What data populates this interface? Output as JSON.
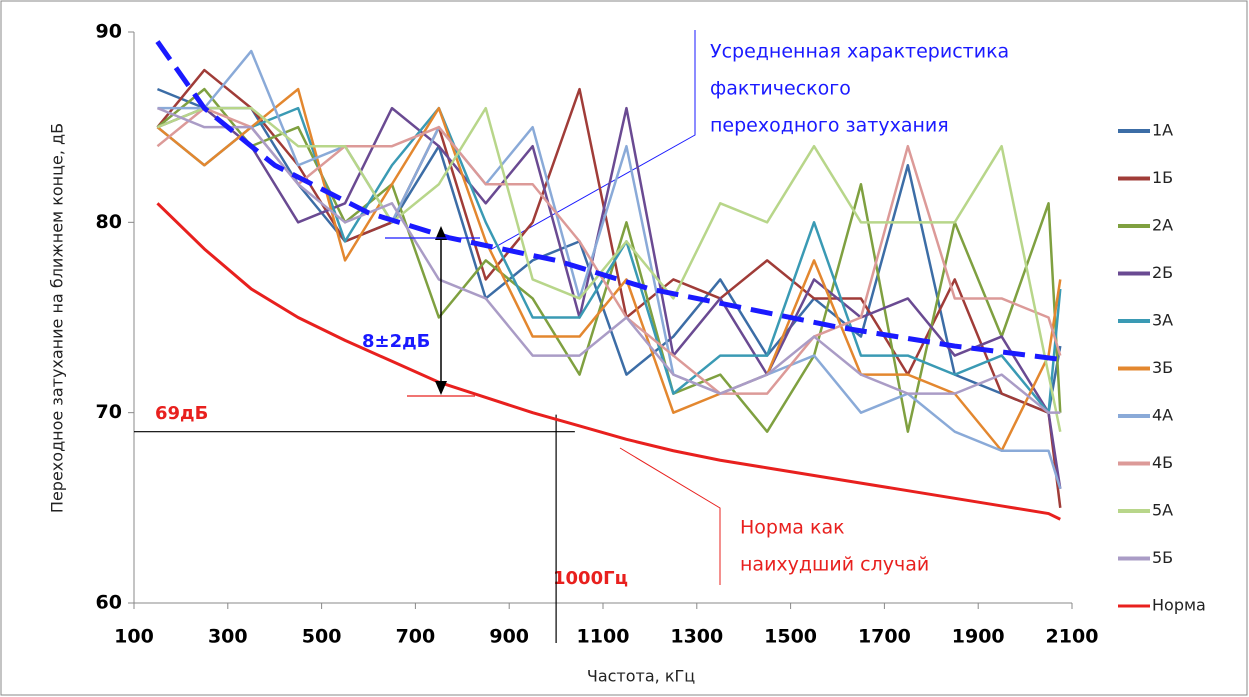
{
  "chart_data": {
    "type": "line",
    "x_label": "Частота, кГц",
    "y_label": "Переходное затухание на ближнем конце,  дБ",
    "xlim": [
      100,
      2100
    ],
    "xticks": [
      100,
      300,
      500,
      700,
      900,
      1100,
      1300,
      1500,
      1700,
      1900,
      2100
    ],
    "ylim": [
      60,
      90
    ],
    "yticks": [
      60,
      70,
      80,
      90
    ],
    "x": [
      150,
      250,
      350,
      450,
      550,
      650,
      750,
      850,
      950,
      1050,
      1150,
      1250,
      1350,
      1450,
      1550,
      1650,
      1750,
      1850,
      1950,
      2050,
      2075
    ],
    "series": [
      {
        "name": "1А",
        "color": "#3c6da6",
        "values": [
          87,
          86,
          86,
          82,
          79,
          80,
          84,
          76,
          78,
          79,
          72,
          74,
          77,
          73,
          76,
          74,
          83,
          72,
          71,
          70,
          73.5
        ]
      },
      {
        "name": "1Б",
        "color": "#a03c38",
        "values": [
          85,
          88,
          86,
          83,
          79,
          80,
          85,
          77,
          80,
          87,
          75,
          77,
          76,
          78,
          76,
          76,
          72,
          77,
          71,
          70,
          65
        ]
      },
      {
        "name": "2А",
        "color": "#7fa040",
        "values": [
          85,
          87,
          84,
          85,
          80,
          82,
          75,
          78,
          76,
          72,
          80,
          71,
          72,
          69,
          73,
          82,
          69,
          80,
          74,
          81,
          70
        ]
      },
      {
        "name": "2Б",
        "color": "#6a4a92",
        "values": [
          85,
          86,
          84,
          80,
          81,
          86,
          84,
          81,
          84,
          75,
          86,
          73,
          76,
          72,
          77,
          75,
          76,
          73,
          74,
          70,
          66
        ]
      },
      {
        "name": "3А",
        "color": "#3a9ab4",
        "values": [
          85,
          83,
          85,
          86,
          79,
          83,
          86,
          80,
          75,
          75,
          79,
          71,
          73,
          73,
          80,
          73,
          73,
          72,
          73,
          70,
          76.5
        ]
      },
      {
        "name": "3Б",
        "color": "#e3872f",
        "values": [
          85,
          83,
          85,
          87,
          78,
          82,
          86,
          79,
          74,
          74,
          77,
          70,
          71,
          72,
          78,
          72,
          72,
          71,
          68,
          73,
          77
        ]
      },
      {
        "name": "4А",
        "color": "#8aaad8",
        "values": [
          86,
          86,
          89,
          83,
          84,
          80,
          85,
          82,
          85,
          76,
          84,
          72,
          71,
          72,
          73,
          70,
          71,
          69,
          68,
          68,
          66
        ]
      },
      {
        "name": "4Б",
        "color": "#dc9a98",
        "values": [
          84,
          86,
          85,
          82,
          84,
          84,
          85,
          82,
          82,
          79,
          75,
          73,
          71,
          71,
          74,
          75,
          84,
          76,
          76,
          75,
          73
        ]
      },
      {
        "name": "5А",
        "color": "#b8d68a",
        "values": [
          85,
          86,
          86,
          84,
          84,
          80,
          82,
          86,
          77,
          76,
          79,
          76,
          81,
          80,
          84,
          80,
          80,
          80,
          84,
          72,
          69
        ]
      },
      {
        "name": "5Б",
        "color": "#aa9cc6",
        "values": [
          86,
          85,
          85,
          82,
          80,
          81,
          77,
          76,
          73,
          73,
          75,
          72,
          71,
          72,
          74,
          72,
          71,
          71,
          72,
          70,
          70
        ]
      },
      {
        "name": "Норма",
        "color": "#e8201e",
        "values": [
          81,
          78.6,
          76.5,
          75,
          73.8,
          72.7,
          71.6,
          70.8,
          70,
          69.3,
          68.6,
          68,
          67.5,
          67.1,
          66.7,
          66.3,
          65.9,
          65.5,
          65.1,
          64.7,
          64.4
        ]
      }
    ],
    "trend": {
      "color": "#1a1aff",
      "x": [
        150,
        250,
        400,
        600,
        770,
        1000,
        1200,
        1400,
        1600,
        1850,
        2075
      ],
      "values": [
        89.5,
        86,
        83,
        80.5,
        79.2,
        78,
        76.5,
        75.5,
        74.5,
        73.5,
        72.8
      ]
    },
    "annotations": {
      "average": [
        "Усредненная характеристика",
        "фактического",
        "переходного затухания"
      ],
      "margin": "8±2дБ",
      "norm_level": {
        "label": "69дБ",
        "value": 69
      },
      "frequency": {
        "label": "1000Гц",
        "value": 1000
      },
      "norm_note": [
        "Норма как",
        "наихудший случай"
      ]
    }
  }
}
